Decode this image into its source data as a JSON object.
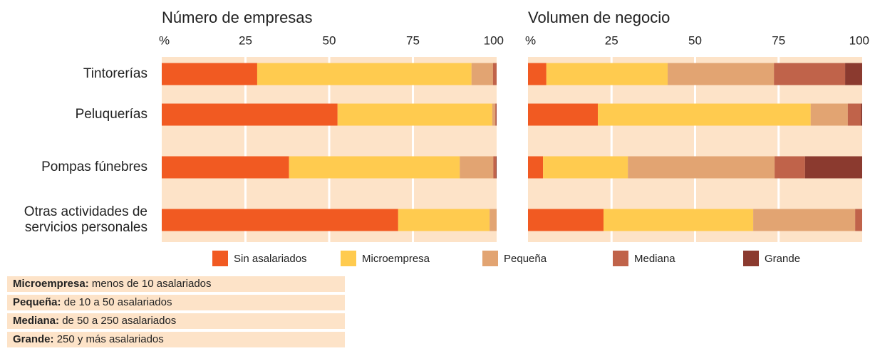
{
  "chart_data": [
    {
      "type": "bar",
      "orientation": "horizontal",
      "stacked": true,
      "title": "Número de empresas",
      "categories": [
        "Tintorerías",
        "Peluquerías",
        "Pompas fúnebres",
        "Otras actividades de servicios personales"
      ],
      "xlim": [
        0,
        100
      ],
      "xticks": [
        {
          "value": 0,
          "label": "%"
        },
        25,
        50,
        75,
        100
      ],
      "grid": true,
      "series": [
        {
          "name": "Sin asalariados",
          "color": "#f15a22",
          "values": [
            28.5,
            52.5,
            38,
            70.6
          ]
        },
        {
          "name": "Microempresa",
          "color": "#ffcb4f",
          "values": [
            64,
            46.2,
            51,
            27.3
          ]
        },
        {
          "name": "Pequeña",
          "color": "#e2a472",
          "values": [
            6.4,
            0.9,
            10,
            2.1
          ]
        },
        {
          "name": "Mediana",
          "color": "#c0634a",
          "values": [
            1.1,
            0.3,
            0.8,
            0
          ]
        },
        {
          "name": "Grande",
          "color": "#8b3a2f",
          "values": [
            0,
            0.1,
            0.2,
            0
          ]
        }
      ]
    },
    {
      "type": "bar",
      "orientation": "horizontal",
      "stacked": true,
      "title": "Volumen de negocio",
      "xlim": [
        0,
        100
      ],
      "xticks": [
        {
          "value": 0,
          "label": "%"
        },
        25,
        50,
        75,
        100
      ],
      "grid": true,
      "series": [
        {
          "color": "#f15a22",
          "values": [
            5.5,
            20.9,
            4.5,
            22.6
          ]
        },
        {
          "color": "#ffcb4f",
          "values": [
            36.3,
            63.7,
            25.4,
            44.8
          ]
        },
        {
          "color": "#e2a472",
          "values": [
            31.8,
            11.1,
            43.9,
            30.5
          ]
        },
        {
          "color": "#c0634a",
          "values": [
            21.3,
            3.9,
            9.1,
            2.1
          ]
        },
        {
          "color": "#8b3a2f",
          "values": [
            5.1,
            0.4,
            17.1,
            0
          ]
        }
      ]
    }
  ],
  "notes": [
    {
      "term": "Microempresa:",
      "text": "menos de 10 asalariados"
    },
    {
      "term": "Pequeña:",
      "text": "de 10 a 50 asalariados"
    },
    {
      "term": "Mediana:",
      "text": "de 50 a 250 asalariados"
    },
    {
      "term": "Grande:",
      "text": "250 y más asalariados"
    }
  ]
}
